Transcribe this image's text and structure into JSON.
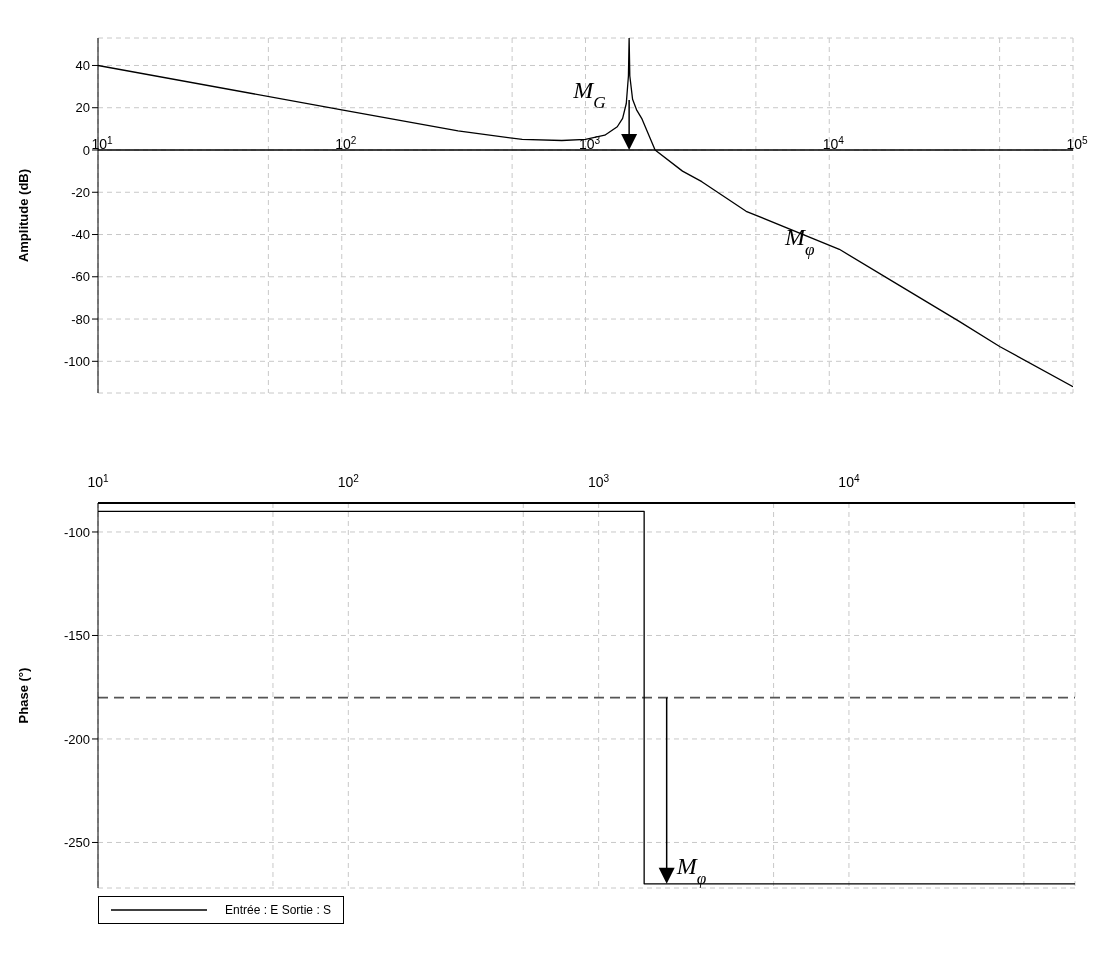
{
  "chart_data": [
    {
      "type": "line",
      "ylabel": "Amplitude (dB)",
      "log": "x",
      "grid": true,
      "marker": "none",
      "line_style": "solid",
      "xlim": [
        10,
        100000
      ],
      "ylim": [
        -115,
        53
      ],
      "xticks": [
        {
          "value": 10,
          "label": "10$^{1}$"
        },
        {
          "value": 50,
          "label": null
        },
        {
          "value": 100,
          "label": "10$^{2}$"
        },
        {
          "value": 500,
          "label": null
        },
        {
          "value": 1000,
          "label": "10$^{3}$"
        },
        {
          "value": 5000,
          "label": null
        },
        {
          "value": 10000,
          "label": "10$^{4}$"
        },
        {
          "value": 50000,
          "label": null
        },
        {
          "value": 100000,
          "label": "10$^{5}$"
        }
      ],
      "yticks": [
        -100,
        -80,
        -60,
        -40,
        -20,
        0,
        20,
        40
      ],
      "series": [
        {
          "color": "#000000",
          "x": [
            10,
            100,
            300,
            550,
            800,
            1000,
            1200,
            1350,
            1420,
            1470,
            1500,
            1510,
            1520,
            1560,
            1620,
            1700,
            1930,
            2500,
            3000,
            4560,
            11000,
            20000,
            34000,
            50000,
            100000
          ],
          "values": [
            40,
            19,
            9,
            5,
            4.5,
            5,
            7,
            11,
            15,
            22,
            35,
            53,
            35,
            24,
            19,
            15,
            0,
            -10,
            -15,
            -29,
            -47,
            -65,
            -81,
            -93,
            -112
          ]
        }
      ],
      "annotations": [
        "M$_{G}$",
        "M$_{φ}$"
      ]
    },
    {
      "type": "line",
      "ylabel": "Phase (°)",
      "log": "x",
      "grid": true,
      "marker": "none",
      "line_style": "solid",
      "legend": "bottom left",
      "xlim": [
        10,
        80000
      ],
      "ylim": [
        -272,
        -86
      ],
      "xticks": [
        {
          "value": 10,
          "label": "10$^{1}$"
        },
        {
          "value": 50,
          "label": null
        },
        {
          "value": 100,
          "label": "10$^{2}$"
        },
        {
          "value": 500,
          "label": null
        },
        {
          "value": 1000,
          "label": "10$^{3}$"
        },
        {
          "value": 5000,
          "label": null
        },
        {
          "value": 10000,
          "label": "10$^{4}$"
        },
        {
          "value": 50000,
          "label": null
        }
      ],
      "yticks": [
        -250,
        -200,
        -150,
        -100
      ],
      "series": [
        {
          "name": "Entrée : E Sortie : S",
          "color": "#000000",
          "x": [
            10,
            1520,
            1520,
            80000
          ],
          "values": [
            -90,
            -90,
            -270,
            -270
          ]
        }
      ],
      "ref_lines": [
        {
          "axis": "y",
          "value": -180,
          "line_style": "dashed",
          "color": "#555555"
        }
      ],
      "annotations": [
        {
          "text": "M$_{φ}$",
          "x": 1870,
          "y": -270
        }
      ]
    }
  ]
}
